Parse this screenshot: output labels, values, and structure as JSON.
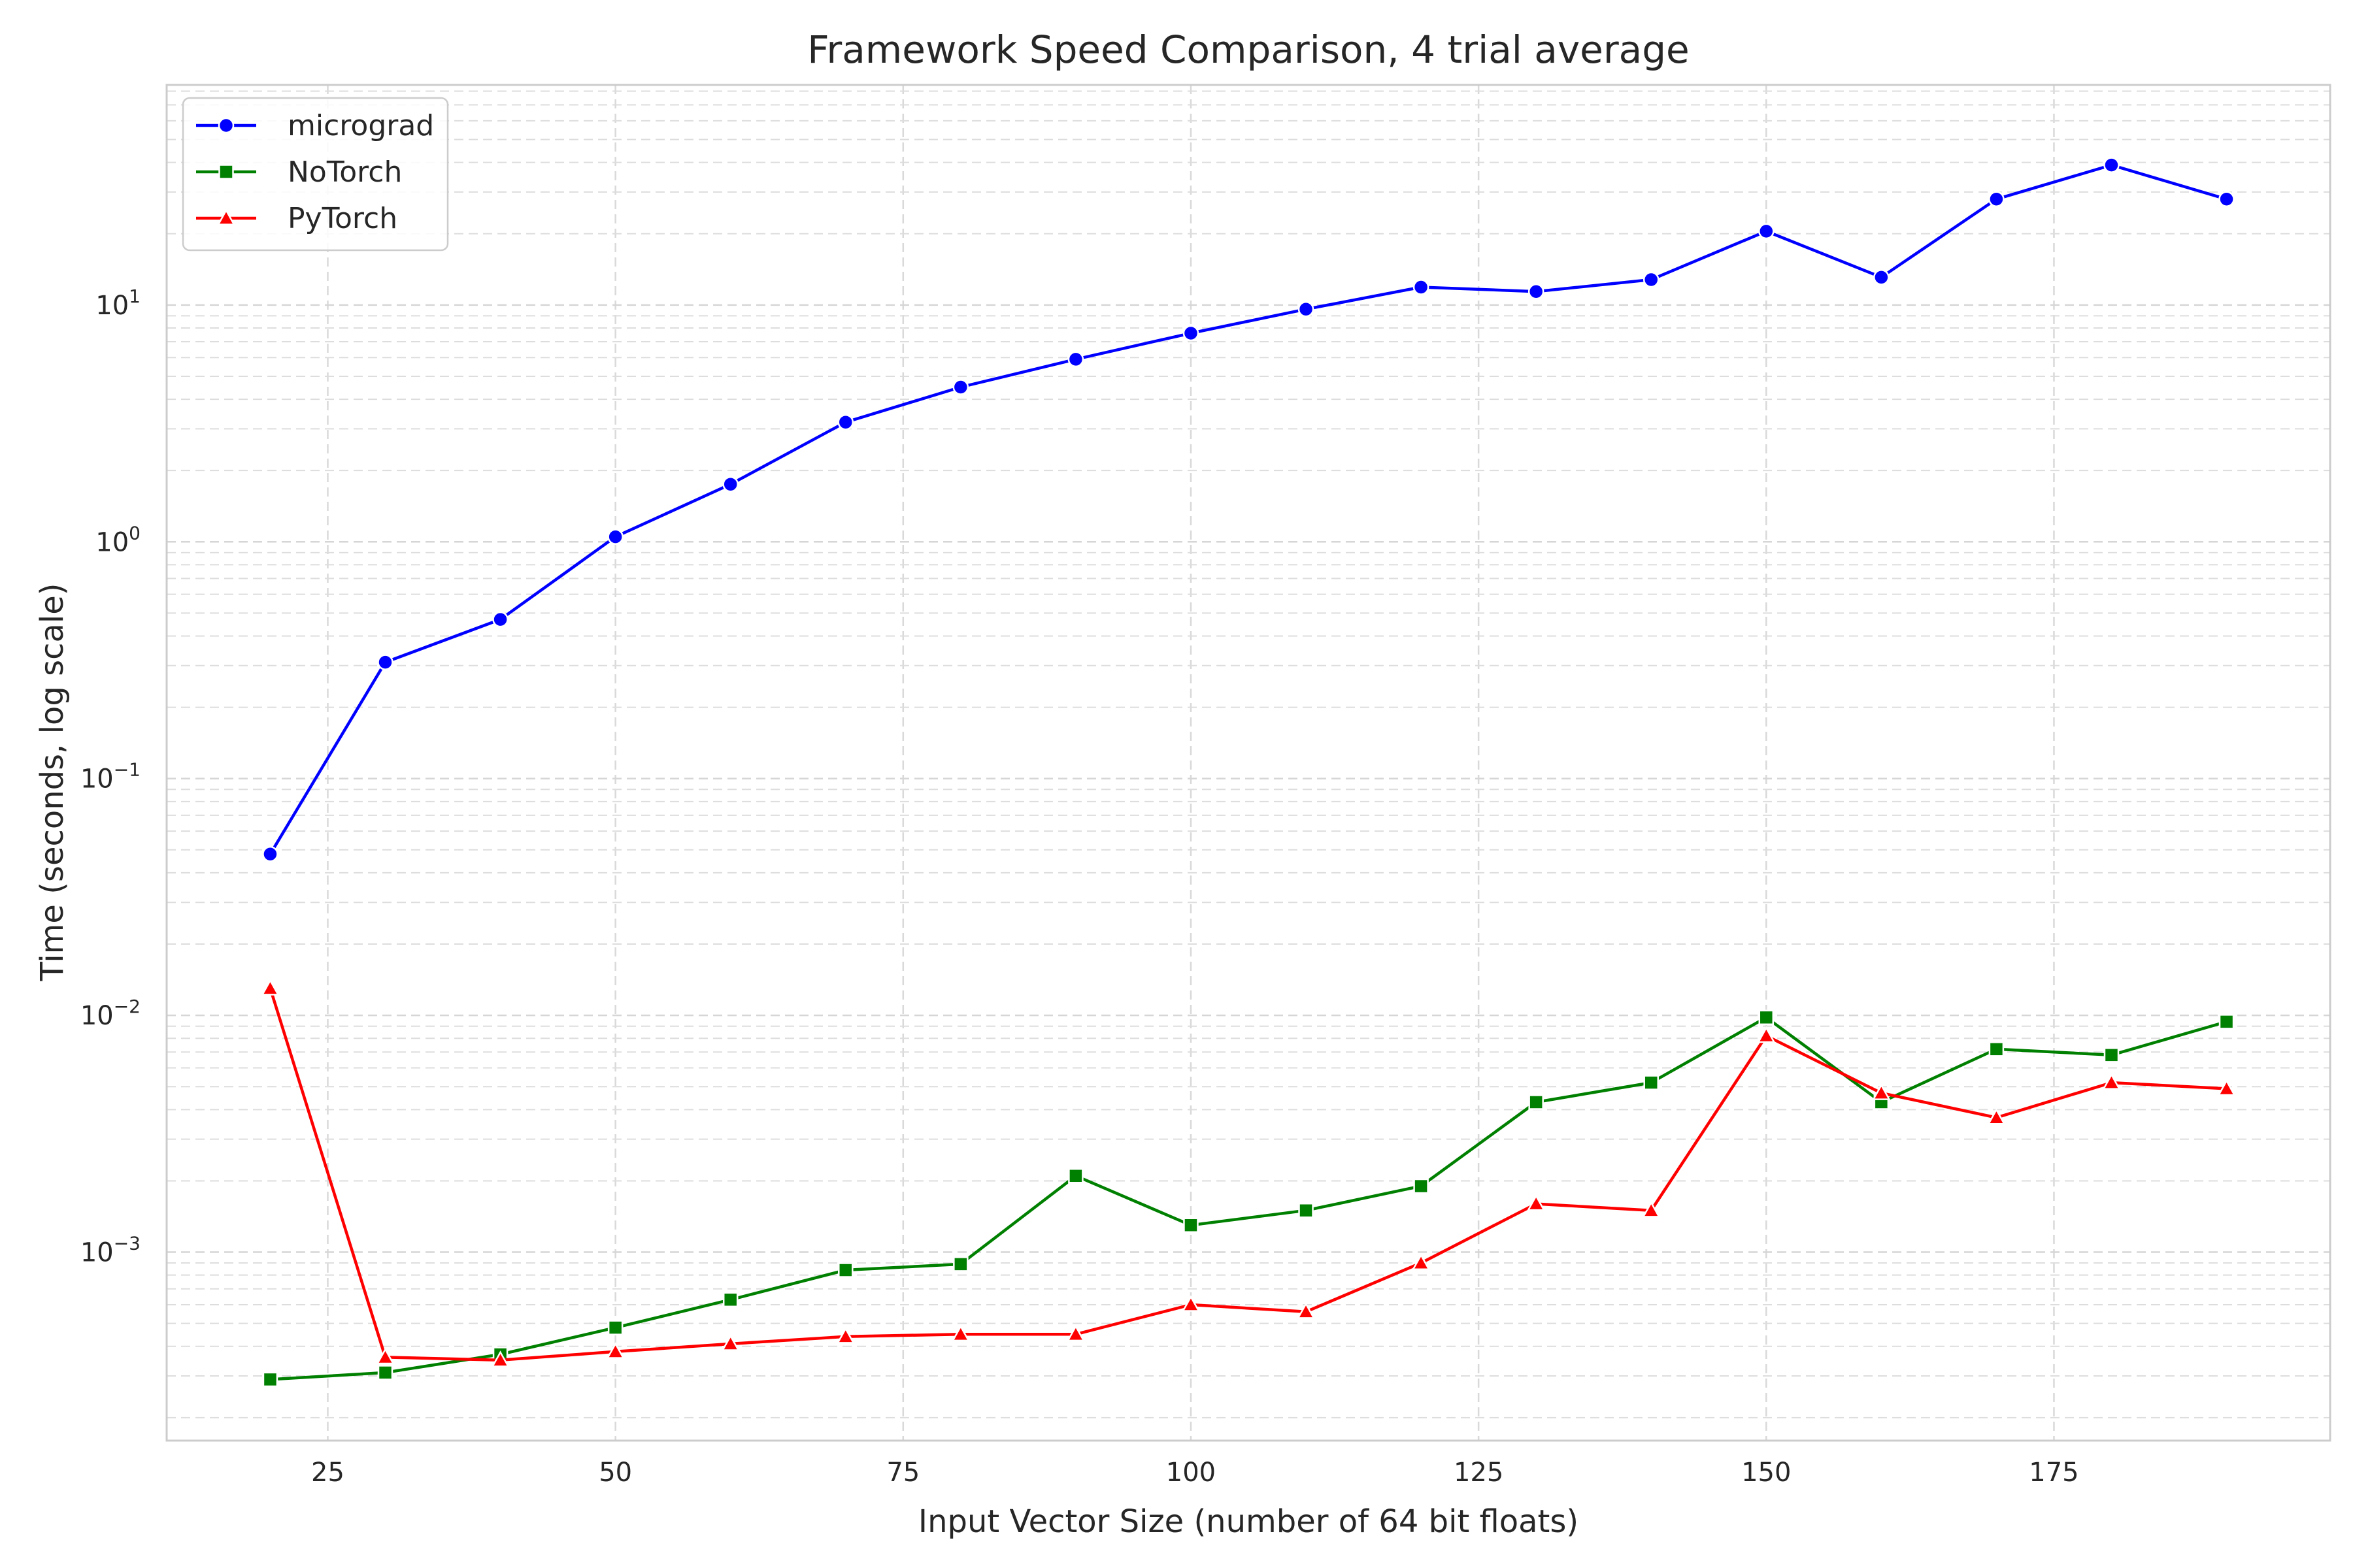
{
  "chart_data": {
    "type": "line",
    "title": "Framework Speed Comparison, 4 trial average",
    "xlabel": "Input Vector Size (number of 64 bit floats)",
    "ylabel": "Time (seconds, log scale)",
    "yscale": "log",
    "grid": true,
    "legend_position": "top-left",
    "xlim": [
      11,
      199
    ],
    "ylim": [
      0.00016,
      85
    ],
    "x_ticks": [
      25,
      50,
      75,
      100,
      125,
      150,
      175
    ],
    "y_ticks": [
      {
        "value": 0.001,
        "base": "10",
        "exp": "−3"
      },
      {
        "value": 0.01,
        "base": "10",
        "exp": "−2"
      },
      {
        "value": 0.1,
        "base": "10",
        "exp": "−1"
      },
      {
        "value": 1,
        "base": "10",
        "exp": "0"
      },
      {
        "value": 10,
        "base": "10",
        "exp": "1"
      }
    ],
    "x": [
      20,
      30,
      40,
      50,
      60,
      70,
      80,
      90,
      100,
      110,
      120,
      130,
      140,
      150,
      160,
      170,
      180,
      190
    ],
    "series": [
      {
        "name": "micrograd",
        "color": "#0000ff",
        "marker": "circle",
        "values": [
          0.048,
          0.31,
          0.47,
          1.05,
          1.75,
          3.2,
          4.5,
          5.9,
          7.6,
          9.6,
          11.9,
          11.4,
          12.8,
          20.5,
          13.1,
          28.0,
          39.0,
          28.0
        ]
      },
      {
        "name": "NoTorch",
        "color": "#008000",
        "marker": "square",
        "values": [
          0.00029,
          0.00031,
          0.00037,
          0.00048,
          0.00063,
          0.00084,
          0.00089,
          0.0021,
          0.0013,
          0.0015,
          0.0019,
          0.0043,
          0.0052,
          0.0098,
          0.0043,
          0.0072,
          0.0068,
          0.0094
        ]
      },
      {
        "name": "PyTorch",
        "color": "#ff0000",
        "marker": "triangle",
        "values": [
          0.013,
          0.00036,
          0.00035,
          0.00038,
          0.00041,
          0.00044,
          0.00045,
          0.00045,
          0.0006,
          0.00056,
          0.0009,
          0.0016,
          0.0015,
          0.0082,
          0.0047,
          0.0037,
          0.0052,
          0.0049
        ]
      }
    ]
  }
}
